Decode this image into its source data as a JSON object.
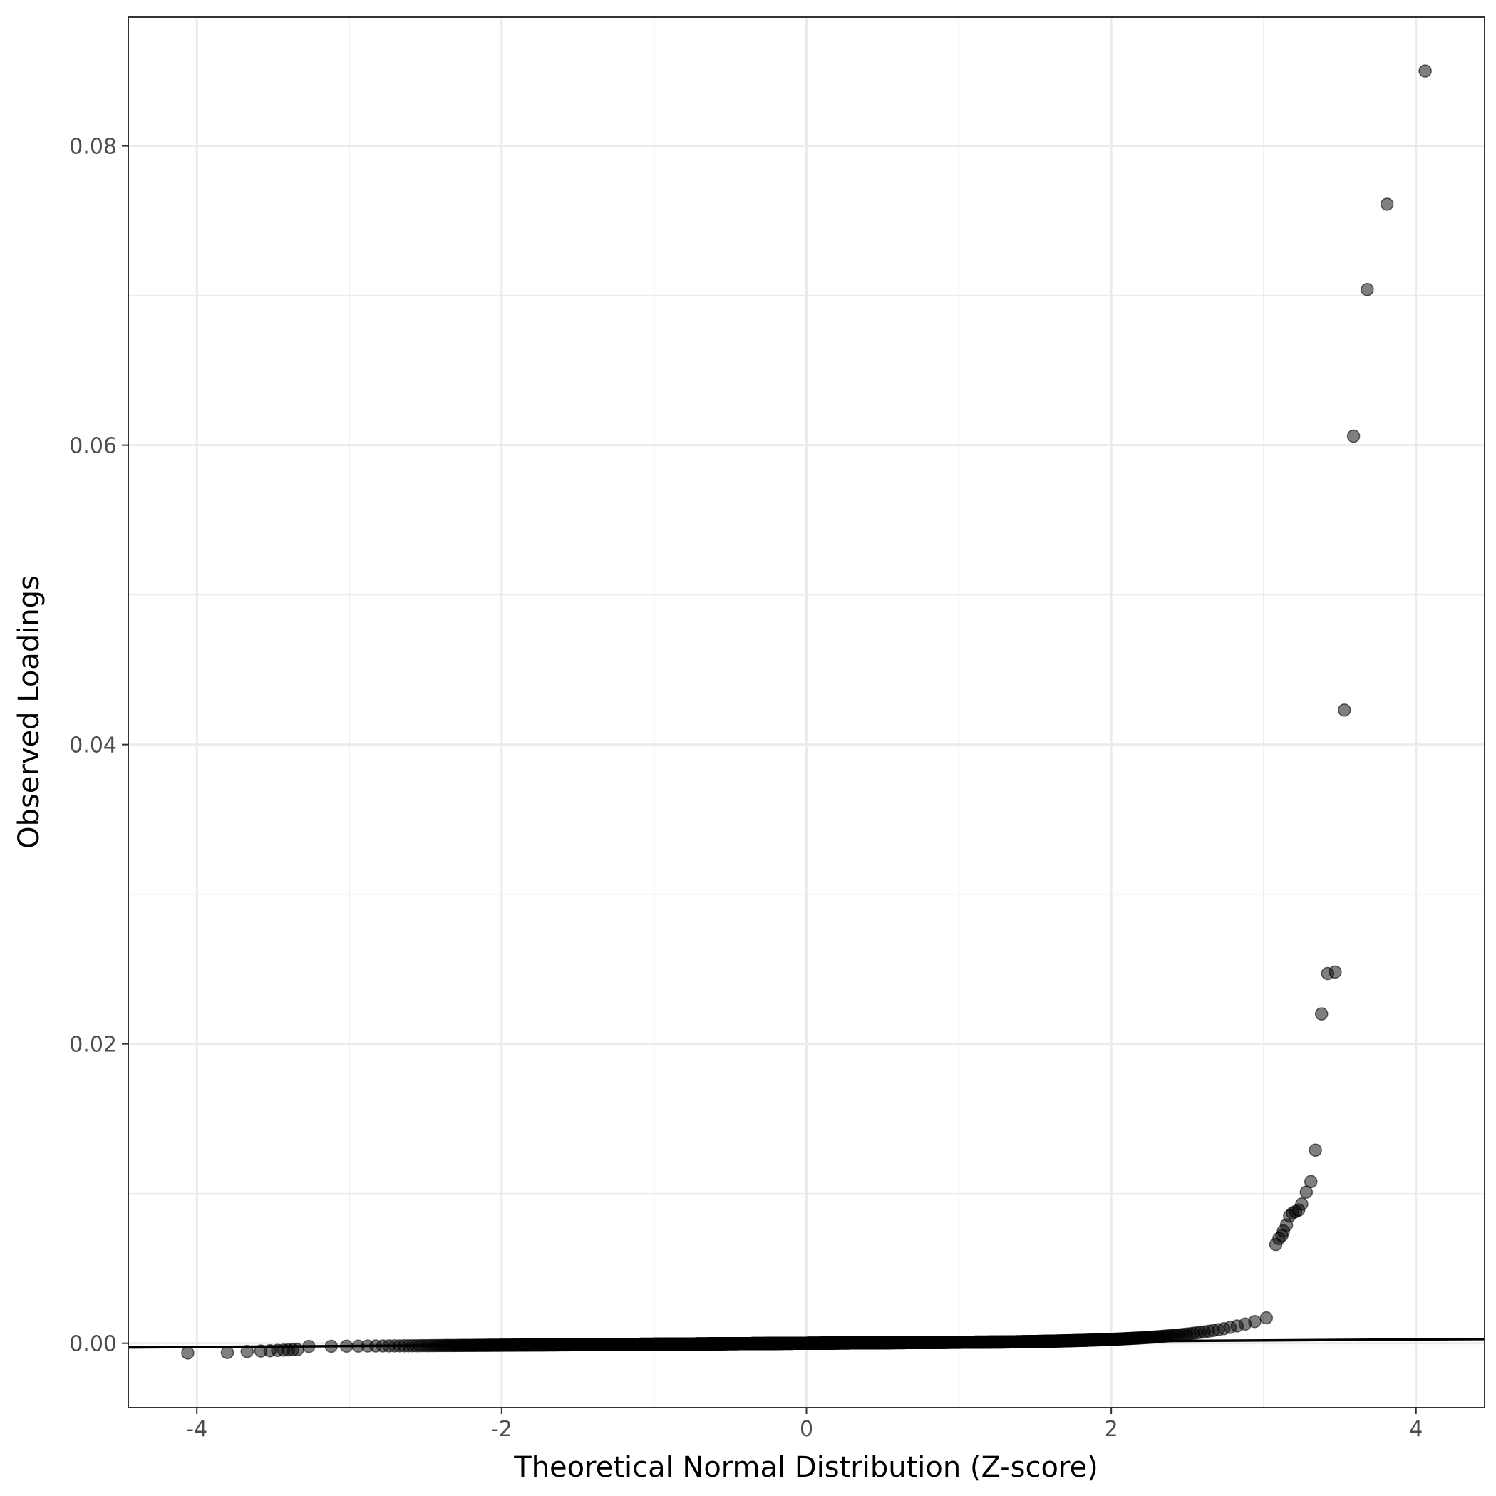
{
  "chart_data": {
    "type": "scatter",
    "title": "",
    "xlabel": "Theoretical Normal Distribution (Z-score)",
    "ylabel": "Observed Loadings",
    "xlim": [
      -4.45,
      4.45
    ],
    "ylim": [
      -0.0043,
      0.0886
    ],
    "x_ticks": [
      -4,
      -2,
      0,
      2,
      4
    ],
    "x_tick_labels": [
      "-4",
      "-2",
      "0",
      "2",
      "4"
    ],
    "y_ticks": [
      0.0,
      0.02,
      0.04,
      0.06,
      0.08
    ],
    "y_tick_labels": [
      "0.00",
      "0.02",
      "0.04",
      "0.06",
      "0.08"
    ],
    "grid": true,
    "theme": "black-and-white",
    "point_color": "#000000",
    "point_alpha": 0.5,
    "line_color": "#000000",
    "reference_line": {
      "x": [
        -4.45,
        4.45
      ],
      "y": [
        -0.00028,
        0.00028
      ]
    },
    "outlier_points": {
      "x": [
        -4.06,
        -3.8,
        -3.67,
        -3.58,
        -3.52,
        -3.47,
        -3.43,
        -3.4,
        -3.37,
        -3.34,
        3.08,
        3.1,
        3.12,
        3.13,
        3.15,
        3.17,
        3.19,
        3.21,
        3.23,
        3.25,
        3.28,
        3.31,
        3.34,
        3.38,
        3.42,
        3.47,
        3.53,
        3.59,
        3.68,
        3.81,
        4.06
      ],
      "y": [
        -0.00065,
        -0.00062,
        -0.00055,
        -0.00052,
        -0.0005,
        -0.00048,
        -0.00046,
        -0.00045,
        -0.00044,
        -0.00043,
        0.0066,
        0.007,
        0.0072,
        0.0075,
        0.0079,
        0.0085,
        0.0087,
        0.0088,
        0.0089,
        0.0093,
        0.0101,
        0.0108,
        0.0129,
        0.022,
        0.0247,
        0.0248,
        0.0423,
        0.0606,
        0.0704,
        0.0761,
        0.085
      ]
    }
  }
}
